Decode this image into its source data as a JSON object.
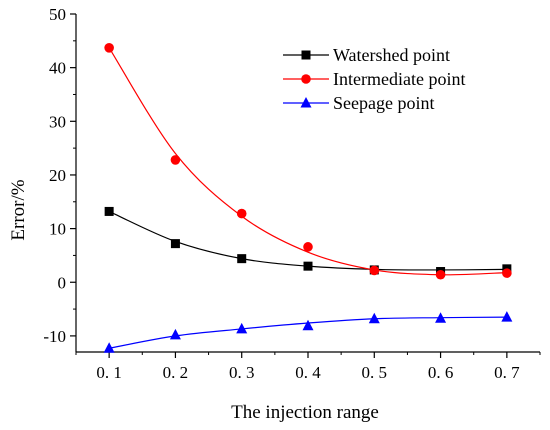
{
  "chart_data": {
    "type": "line",
    "xlabel": "The injection range",
    "ylabel": "Error/%",
    "x": [
      0.1,
      0.2,
      0.3,
      0.4,
      0.5,
      0.6,
      0.7
    ],
    "x_tick_labels": [
      "0. 1",
      "0. 2",
      "0. 3",
      "0. 4",
      "0. 5",
      "0. 6",
      "0. 7"
    ],
    "xlim": [
      0.05,
      0.75
    ],
    "ylim": [
      -13,
      50
    ],
    "y_ticks": [
      -10,
      0,
      10,
      20,
      30,
      40,
      50
    ],
    "y_tick_labels": [
      "-10",
      "0",
      "10",
      "20",
      "30",
      "40",
      "50"
    ],
    "grid": false,
    "legend_position": "top-right",
    "series": [
      {
        "name": "Watershed point",
        "color": "#000000",
        "marker": "square",
        "values": [
          13.2,
          7.2,
          4.4,
          3.0,
          2.3,
          2.0,
          2.5
        ],
        "curve": [
          13.2,
          7.6,
          4.4,
          3.0,
          2.4,
          2.3,
          2.4
        ]
      },
      {
        "name": "Intermediate point",
        "color": "#ff0000",
        "marker": "circle",
        "values": [
          43.7,
          22.8,
          12.8,
          6.6,
          2.2,
          1.4,
          1.7
        ],
        "curve": [
          43.7,
          24.0,
          12.3,
          5.6,
          2.3,
          1.4,
          1.8
        ]
      },
      {
        "name": "Seepage point",
        "color": "#0000ff",
        "marker": "triangle",
        "values": [
          -12.3,
          -9.8,
          -8.7,
          -8.1,
          -6.8,
          -6.7,
          -6.5
        ],
        "curve": [
          -12.3,
          -10.0,
          -8.7,
          -7.6,
          -6.8,
          -6.6,
          -6.5
        ]
      }
    ]
  }
}
